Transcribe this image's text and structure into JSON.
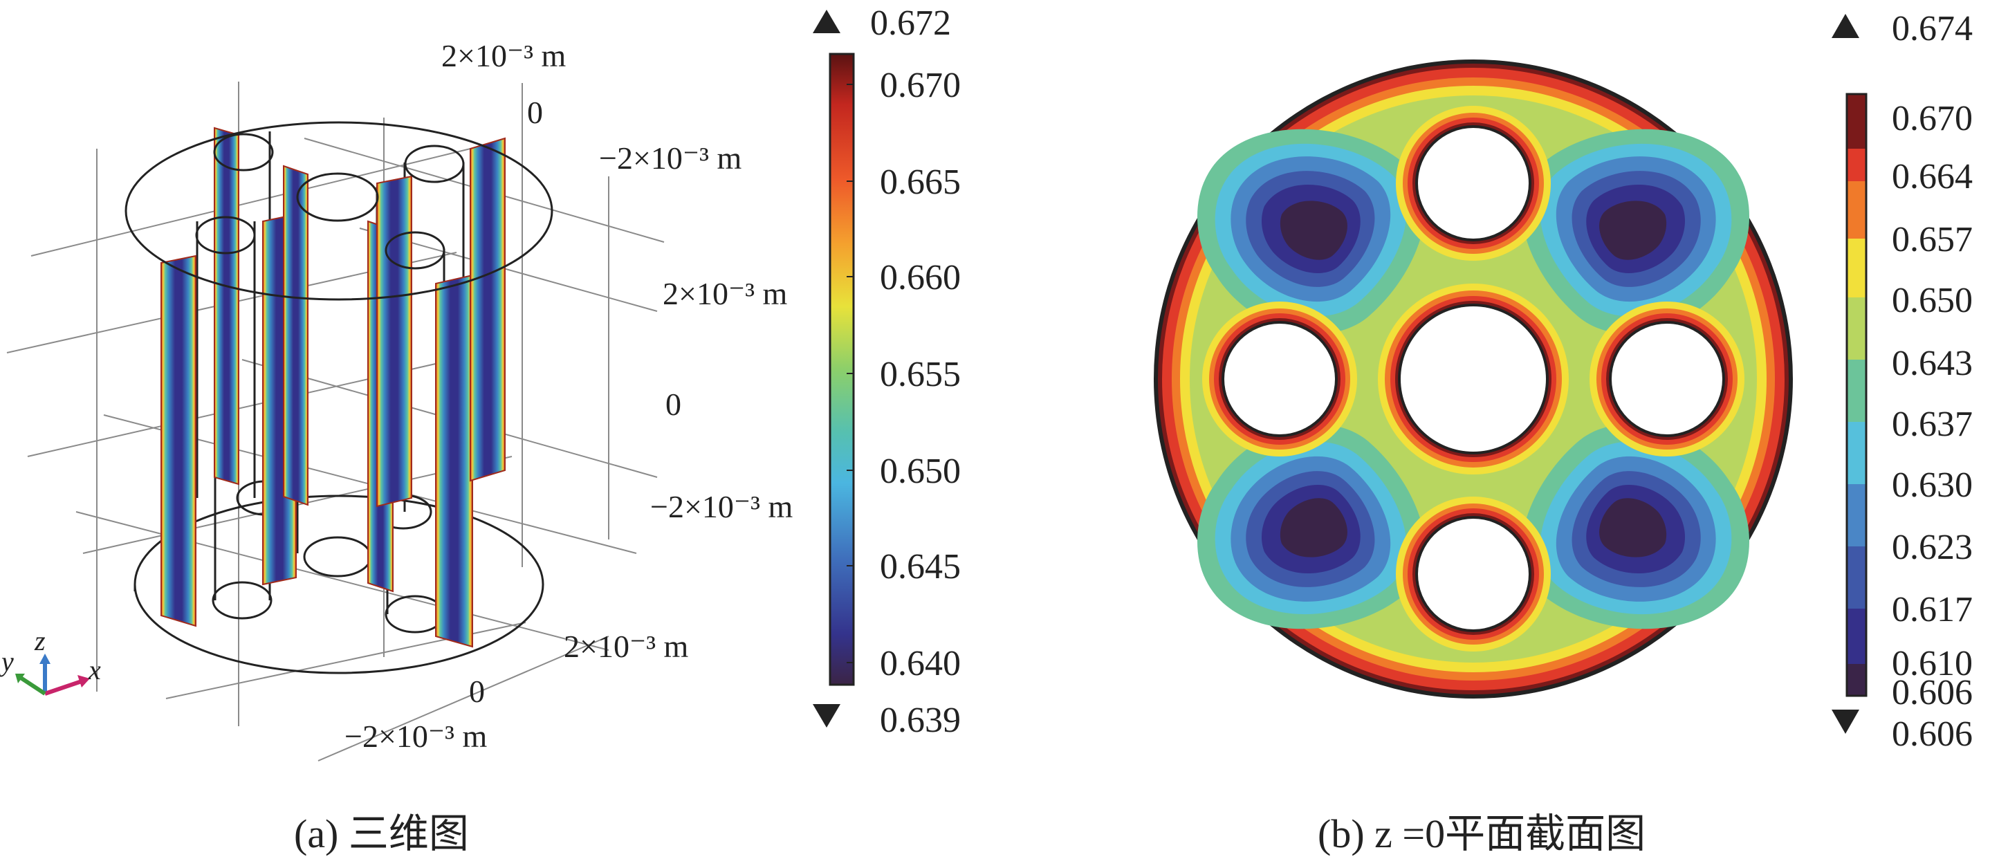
{
  "panel_a": {
    "caption": "(a) 三维图",
    "axis_labels": {
      "top_y_pos": "2×10⁻³ m",
      "top_zero": "0",
      "top_y_neg": "−2×10⁻³ m",
      "z_pos": "2×10⁻³ m",
      "z_zero": "0",
      "z_neg": "−2×10⁻³ m",
      "bottom_x_pos": "2×10⁻³ m",
      "bottom_zero": "0",
      "bottom_x_neg": "−2×10⁻³ m"
    },
    "triad": {
      "x": "x",
      "y": "y",
      "z": "z"
    },
    "colorbar": {
      "max_marker": "0.672",
      "min_marker": "0.639",
      "ticks": [
        "0.670",
        "0.665",
        "0.660",
        "0.655",
        "0.650",
        "0.645",
        "0.640"
      ]
    }
  },
  "panel_b": {
    "caption": "(b) z =0平面截面图",
    "colorbar": {
      "max_marker": "0.674",
      "min_marker": "0.606",
      "ticks": [
        "0.670",
        "0.664",
        "0.657",
        "0.650",
        "0.643",
        "0.637",
        "0.630",
        "0.623",
        "0.617",
        "0.610",
        "0.606"
      ]
    }
  },
  "colors": {
    "dark_red": "#7a1a1a",
    "red": "#e03a2a",
    "orange": "#f07a2a",
    "yellow": "#f2e03a",
    "yellow_green": "#b8d660",
    "green": "#6cc49a",
    "cyan": "#56c0dc",
    "blue": "#4a86c6",
    "mid_blue": "#3f58a8",
    "indigo": "#35308a",
    "dark_purple": "#3a2448"
  }
}
